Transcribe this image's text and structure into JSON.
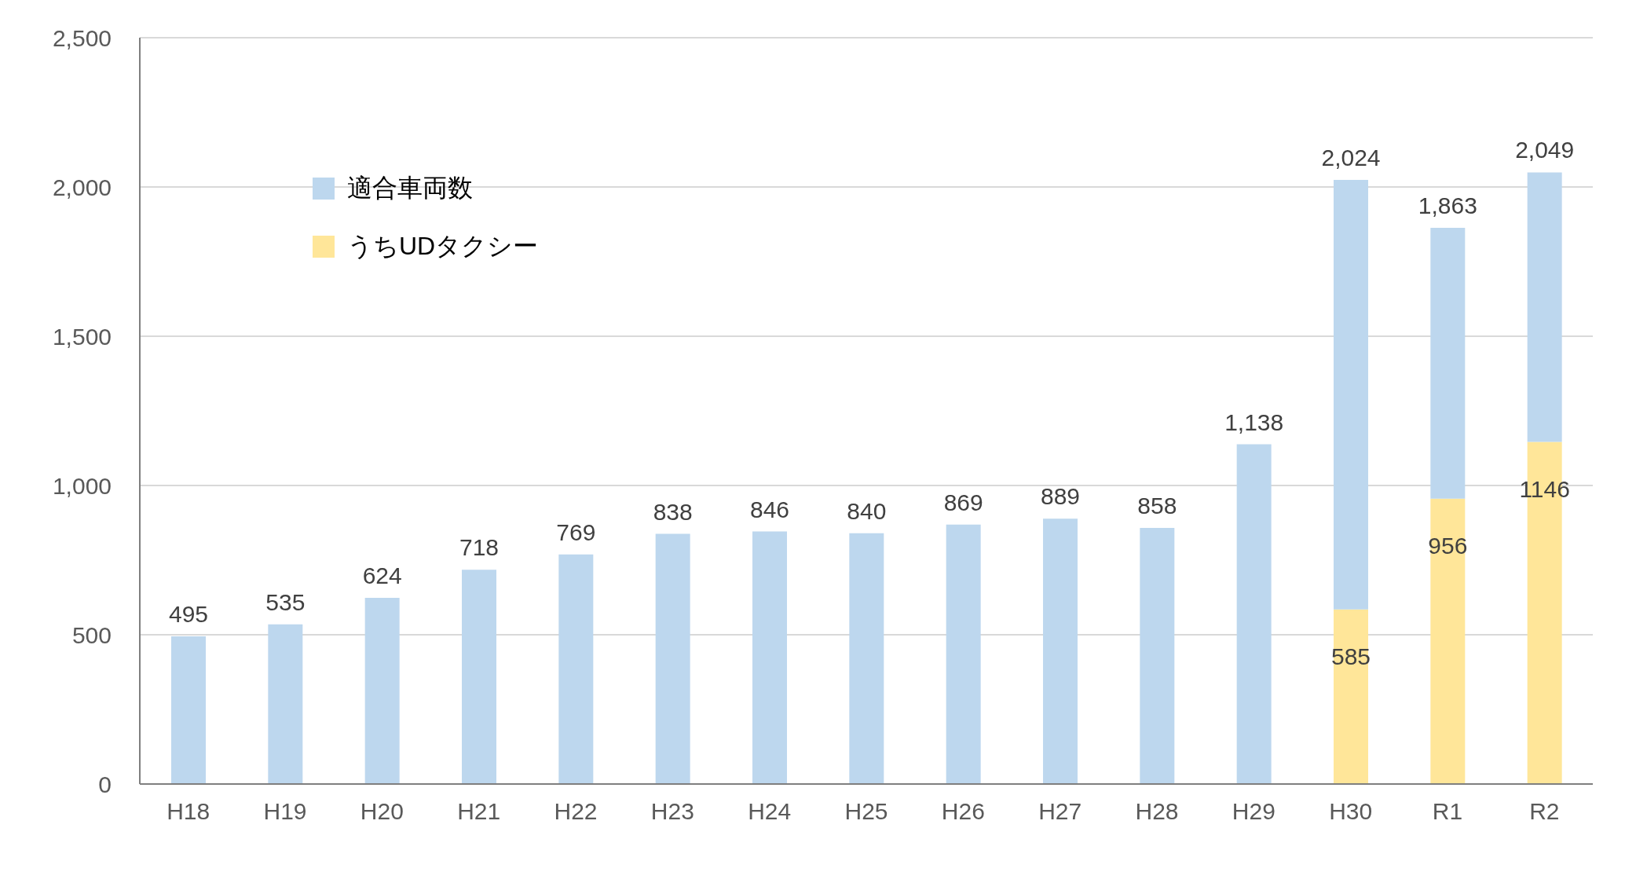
{
  "chart_data": {
    "type": "bar",
    "stacked": true,
    "categories": [
      "H18",
      "H19",
      "H20",
      "H21",
      "H22",
      "H23",
      "H24",
      "H25",
      "H26",
      "H27",
      "H28",
      "H29",
      "H30",
      "R1",
      "R2"
    ],
    "series": [
      {
        "name": "うちUDタクシー",
        "color": "#ffe699",
        "values": [
          null,
          null,
          null,
          null,
          null,
          null,
          null,
          null,
          null,
          null,
          null,
          null,
          585,
          956,
          1146
        ],
        "value_labels": [
          null,
          null,
          null,
          null,
          null,
          null,
          null,
          null,
          null,
          null,
          null,
          null,
          "585",
          "956",
          "1146"
        ]
      },
      {
        "name": "適合車両数",
        "color": "#bdd7ee",
        "values": [
          495,
          535,
          624,
          718,
          769,
          838,
          846,
          840,
          869,
          889,
          858,
          1138,
          1439,
          907,
          903
        ]
      }
    ],
    "totals": [
      "495",
      "535",
      "624",
      "718",
      "769",
      "838",
      "846",
      "840",
      "869",
      "889",
      "858",
      "1,138",
      "2,024",
      "1,863",
      "2,049"
    ],
    "ylim": [
      0,
      2500
    ],
    "yticks": [
      0,
      {
        "value": 500,
        "label": "500"
      },
      {
        "value": 1000,
        "label": "1,000"
      },
      {
        "value": 1500,
        "label": "1,500"
      },
      {
        "value": 2000,
        "label": "2,000"
      },
      {
        "value": 2500,
        "label": "2,500"
      }
    ],
    "grid": "y",
    "legend": "top left"
  }
}
